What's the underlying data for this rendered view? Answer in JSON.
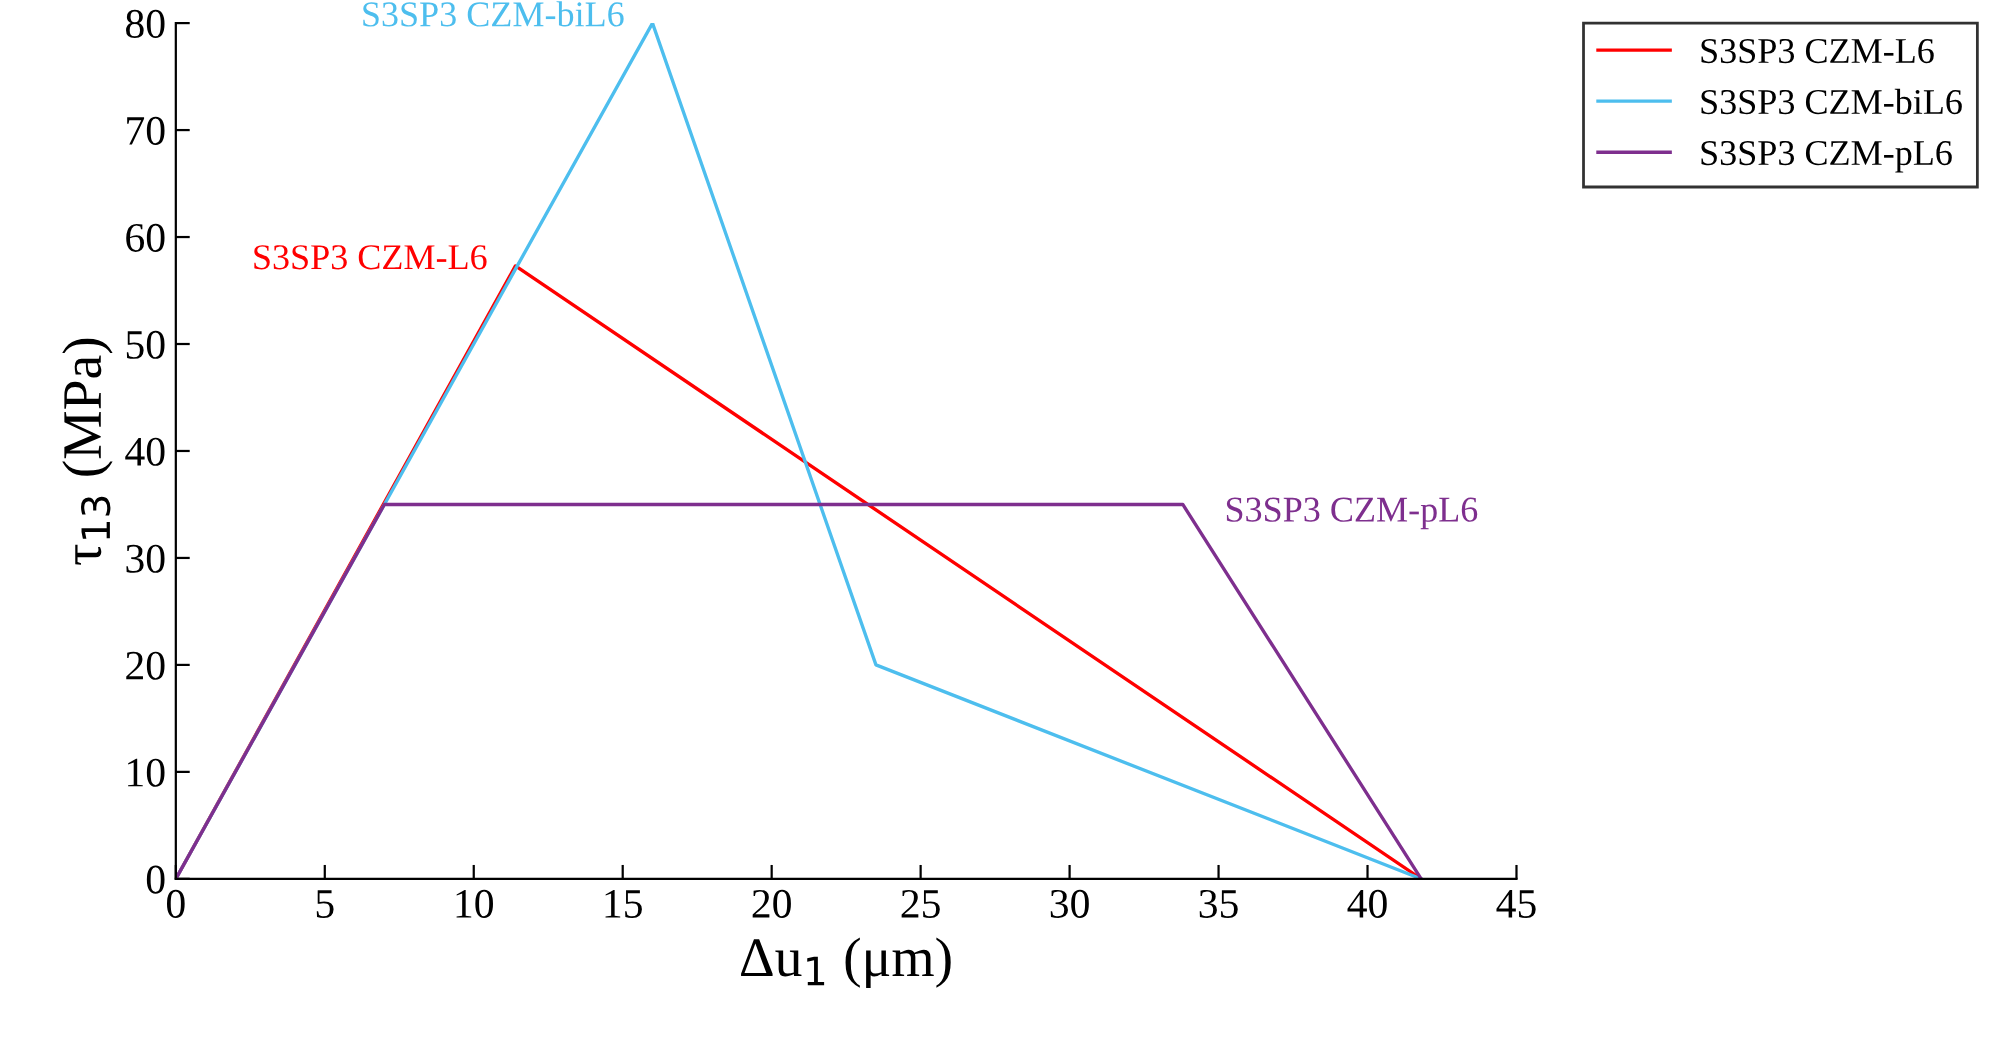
{
  "chart_data": {
    "type": "line",
    "xlabel": "Δu$_{1}$ (μm)",
    "ylabel": "τ$_{13}$ (MPa)",
    "xlim": [
      0,
      45
    ],
    "ylim": [
      0,
      80
    ],
    "xticks": [
      0,
      5,
      10,
      15,
      20,
      25,
      30,
      35,
      40,
      45
    ],
    "yticks": [
      0,
      10,
      20,
      30,
      40,
      50,
      60,
      70,
      80
    ],
    "grid": false,
    "legend": "top right",
    "marker": "none",
    "line_style": "solid",
    "series": [
      {
        "name": "S3SP3 CZM-L6",
        "color": "#ff0000",
        "x": [
          0,
          11.4,
          41.8
        ],
        "values": [
          0,
          57.3,
          0
        ]
      },
      {
        "name": "S3SP3 CZM-biL6",
        "color": "#4dbeee",
        "x": [
          0,
          16,
          23.5,
          41.8
        ],
        "values": [
          0,
          80,
          20,
          0
        ]
      },
      {
        "name": "S3SP3 CZM-pL6",
        "color": "#7e2f8e",
        "x": [
          0,
          7,
          33.8,
          41.8
        ],
        "values": [
          0,
          35,
          35,
          0
        ]
      }
    ],
    "annotations": [
      "S3SP3 CZM-L6",
      "S3SP3 CZM-biL6",
      "S3SP3 CZM-pL6"
    ]
  }
}
